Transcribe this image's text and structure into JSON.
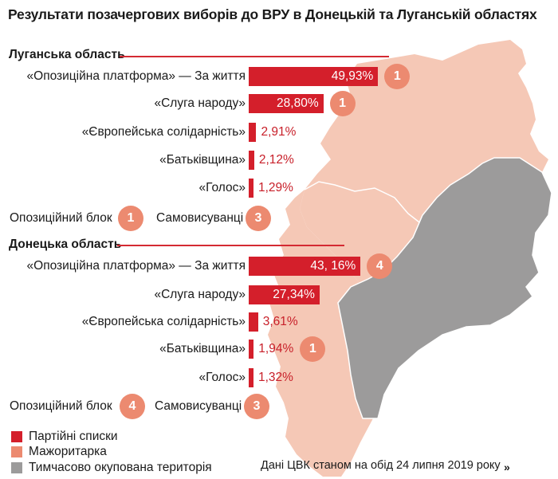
{
  "title": "Результати позачергових виборів до ВРУ в Донецькій та Луганській областях",
  "colors": {
    "bar": "#d41f2b",
    "badge": "#ec8a70",
    "map_region": "#f5c8b6",
    "occupied": "#9c9b9b",
    "accent_text": "#c8202a"
  },
  "chart_data": [
    {
      "type": "bar",
      "orientation": "horizontal",
      "region": "Луганська область",
      "unit": "%",
      "categories": [
        "«Опозиційна платформа» — За життя",
        "«Слуга народу»",
        "«Європейська солідарність»",
        "«Батьківщина»",
        "«Голос»"
      ],
      "values": [
        49.93,
        28.8,
        2.91,
        2.12,
        1.29
      ],
      "value_labels": [
        "49,93%",
        "28,80%",
        "2,91%",
        "2,12%",
        "1,29%"
      ],
      "majoritarian_seats": [
        "1",
        "1",
        null,
        null,
        null
      ],
      "other_seats": [
        {
          "label": "Опозиційний блок",
          "seats": "1"
        },
        {
          "label": "Самовисуванці",
          "seats": "3"
        }
      ]
    },
    {
      "type": "bar",
      "orientation": "horizontal",
      "region": "Донецька область",
      "unit": "%",
      "categories": [
        "«Опозиційна платформа» — За життя",
        "«Слуга народу»",
        "«Європейська солідарність»",
        "«Батьківщина»",
        "«Голос»"
      ],
      "values": [
        43.16,
        27.34,
        3.61,
        1.94,
        1.32
      ],
      "value_labels": [
        "43, 16%",
        "27,34%",
        "3,61%",
        "1,94%",
        "1,32%"
      ],
      "majoritarian_seats": [
        "4",
        null,
        null,
        "1",
        null
      ],
      "other_seats": [
        {
          "label": "Опозиційний блок",
          "seats": "4"
        },
        {
          "label": "Самовисуванці",
          "seats": "3"
        }
      ]
    }
  ],
  "legend": [
    {
      "label": "Партійні списки",
      "color": "#d41f2b"
    },
    {
      "label": "Мажоритарка",
      "color": "#ec8a70"
    },
    {
      "label": "Тимчасово окупована територія",
      "color": "#9c9b9b"
    }
  ],
  "source": "Дані ЦВК станом на обід 24 липня 2019 року",
  "logo_text": "»"
}
